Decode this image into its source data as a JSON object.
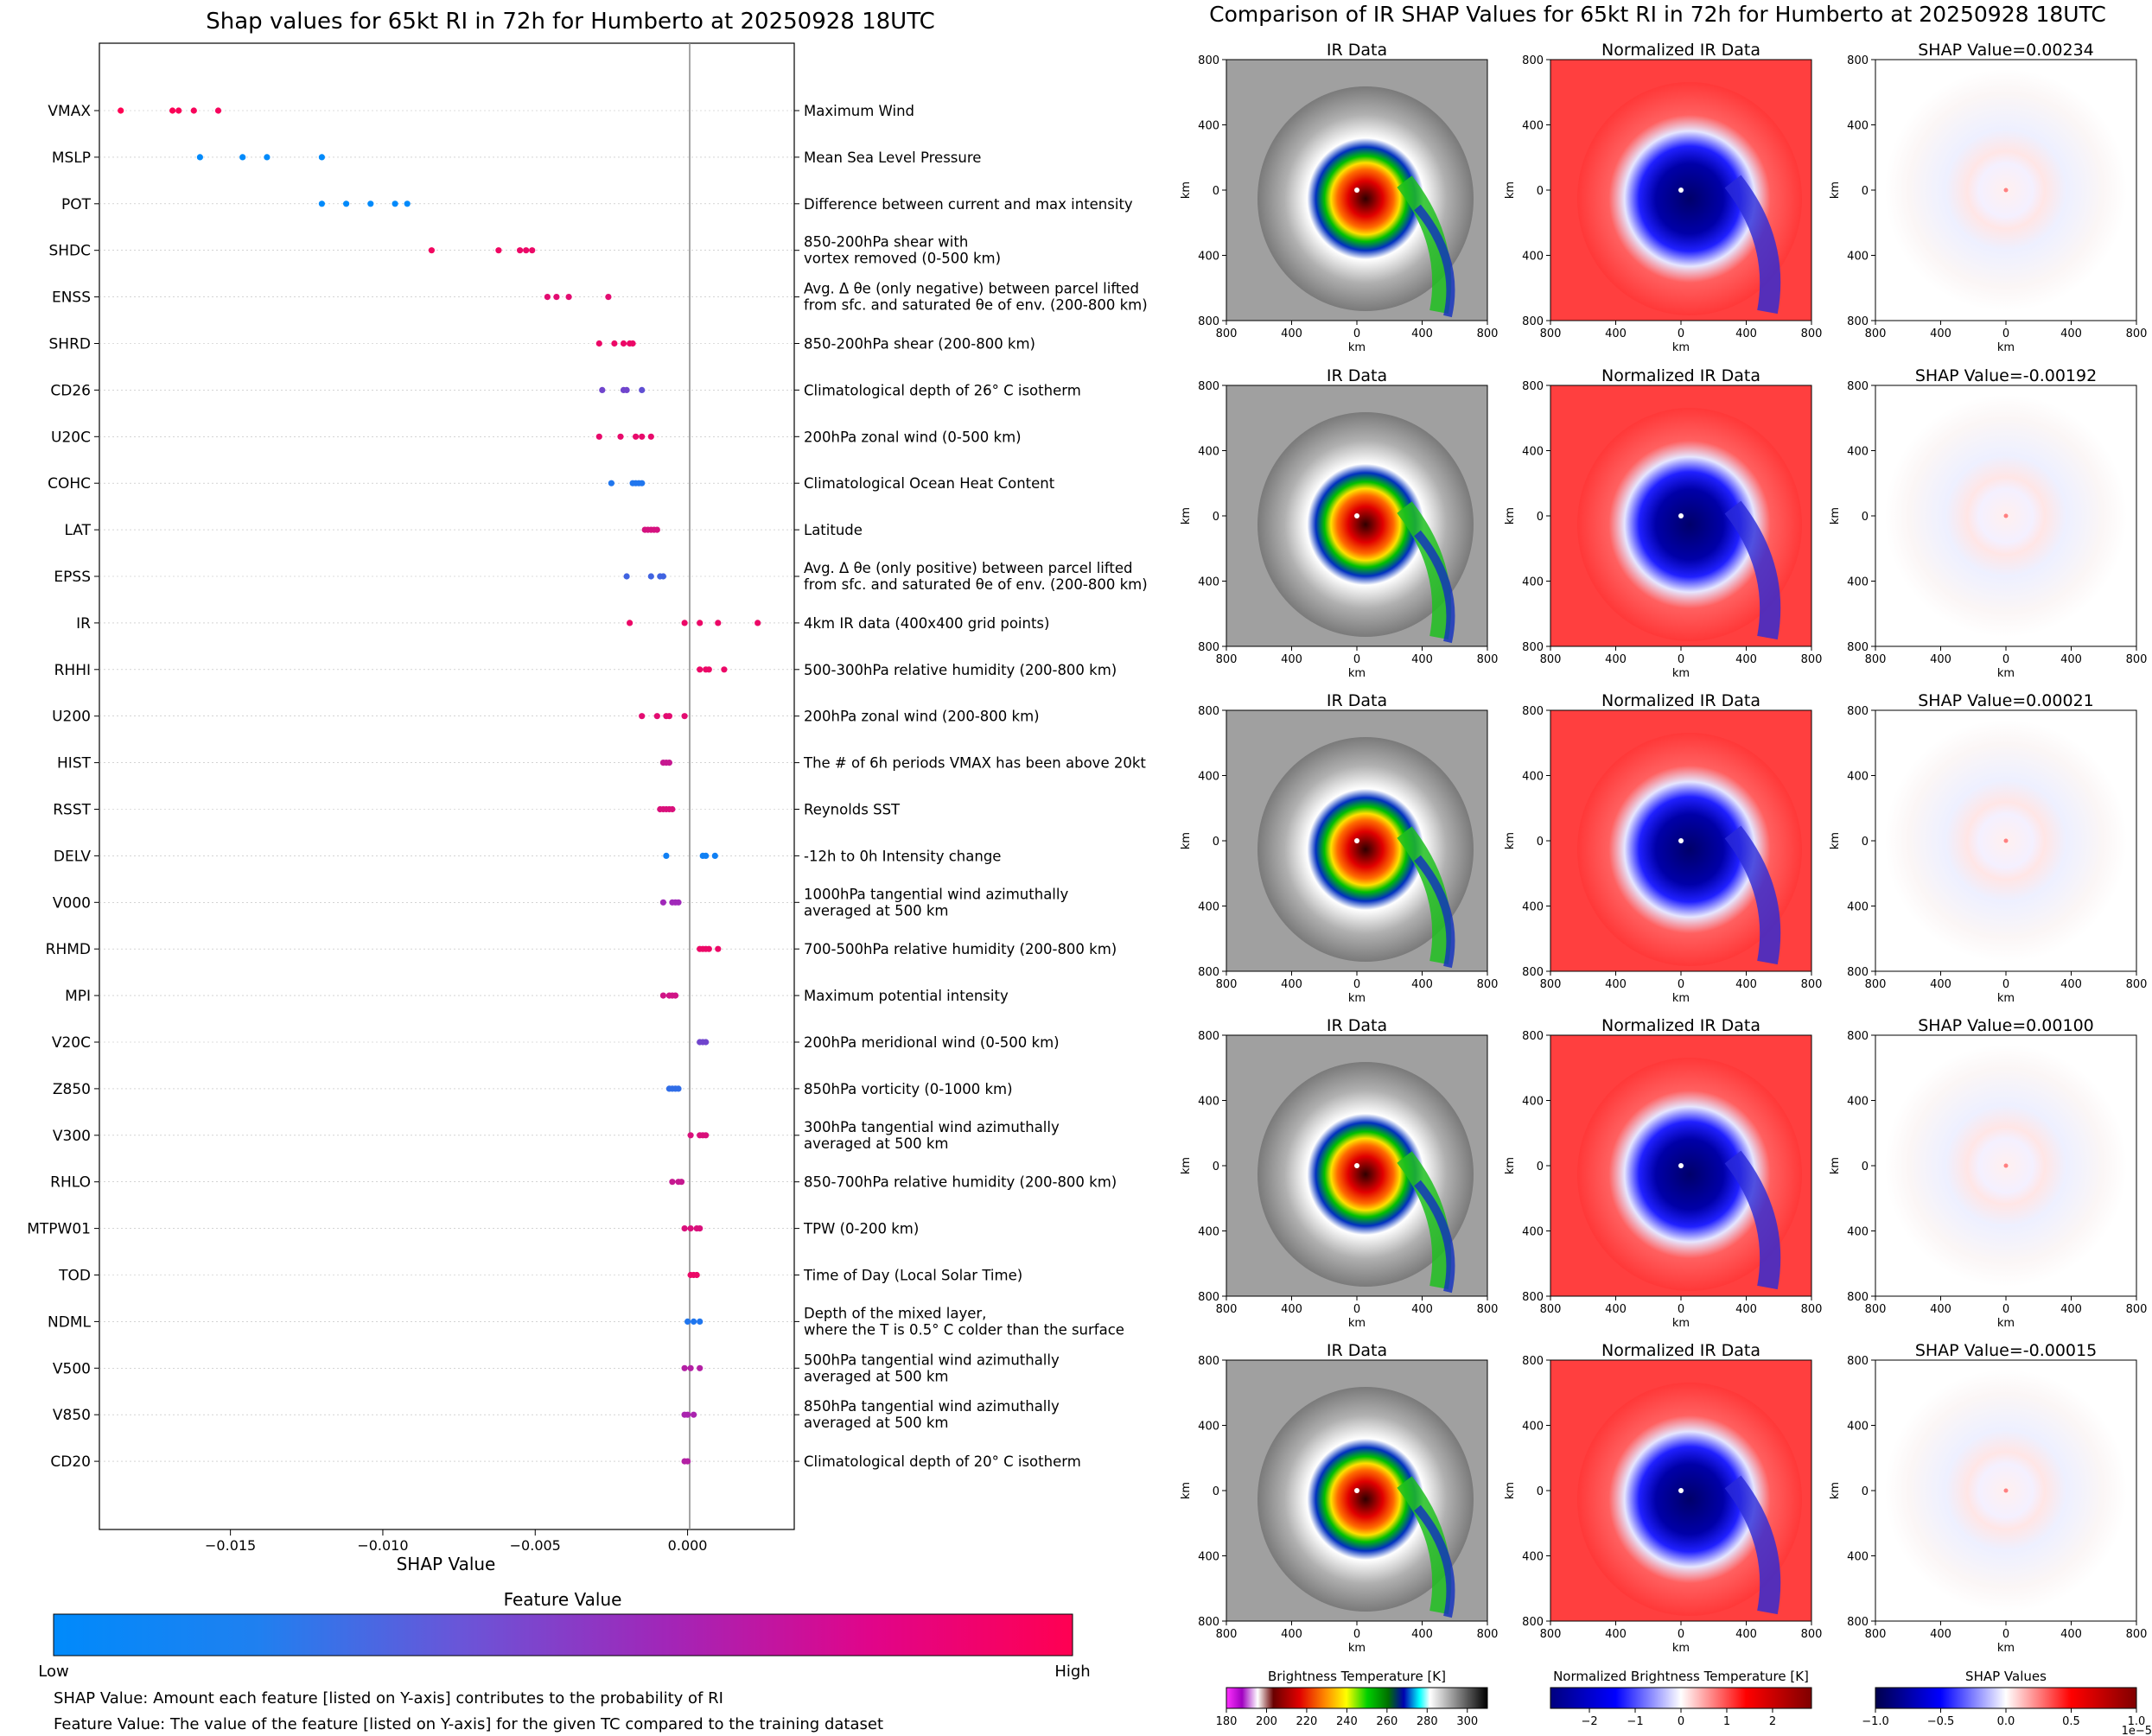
{
  "left_title": "Shap values for 65kt RI in 72h for Humberto at 20250928 18UTC",
  "right_title": "Comparison of IR SHAP Values for 65kt RI in 72h for Humberto at 20250928 18UTC",
  "xlabel": "SHAP Value",
  "colorbar": {
    "title": "Feature Value",
    "low": "Low",
    "high": "High",
    "low_color": "#008afb",
    "high_color": "#ff0052"
  },
  "notes": [
    "SHAP Value: Amount each feature [listed on Y-axis] contributes to the probability of RI",
    "Feature Value: The value of the feature [listed on Y-axis] for the given TC compared to the training dataset"
  ],
  "panel_titles": {
    "ir": "IR Data",
    "norm": "Normalized IR Data"
  },
  "axis_unit": "km",
  "km_ticks": [
    "800",
    "400",
    "0",
    "400",
    "800"
  ],
  "shap_panel_values": [
    "SHAP Value=0.00234",
    "SHAP Value=-0.00192",
    "SHAP Value=0.00021",
    "SHAP Value=0.00100",
    "SHAP Value=-0.00015"
  ],
  "bottom_colorbars": {
    "ir": {
      "title": "Brightness Temperature [K]",
      "ticks": [
        "180",
        "200",
        "220",
        "240",
        "260",
        "280",
        "300"
      ]
    },
    "norm": {
      "title": "Normalized Brightness Temperature [K]",
      "ticks": [
        "−2",
        "−1",
        "0",
        "1",
        "2"
      ]
    },
    "shap": {
      "title": "SHAP Values",
      "ticks": [
        "−1.0",
        "−0.5",
        "0.0",
        "0.5",
        "1.0"
      ],
      "offset": "1e−5"
    }
  },
  "chart_data": [
    {
      "type": "scatter",
      "title": "Shap values for 65kt RI in 72h for Humberto at 20250928 18UTC",
      "xlabel": "SHAP Value",
      "xlim": [
        -0.0193,
        0.0035
      ],
      "xticks": [
        -0.015,
        -0.01,
        -0.005,
        0.0
      ],
      "xtick_labels": [
        "−0.015",
        "−0.010",
        "−0.005",
        "0.000"
      ],
      "features": [
        {
          "name": "VMAX",
          "desc": [
            "Maximum Wind"
          ],
          "values": [
            -0.0186,
            -0.0169,
            -0.0167,
            -0.0162,
            -0.0154
          ],
          "feature_value": [
            1.0,
            0.98,
            0.97,
            0.96,
            0.95
          ]
        },
        {
          "name": "MSLP",
          "desc": [
            "Mean Sea Level Pressure"
          ],
          "values": [
            -0.016,
            -0.0146,
            -0.0138,
            -0.012
          ],
          "feature_value": [
            0.0,
            0.0,
            0.0,
            0.0
          ]
        },
        {
          "name": "POT",
          "desc": [
            "Difference between current and max intensity"
          ],
          "values": [
            -0.012,
            -0.0112,
            -0.0104,
            -0.0096,
            -0.0092
          ],
          "feature_value": [
            0.0,
            0.0,
            0.0,
            0.0,
            0.0
          ]
        },
        {
          "name": "SHDC",
          "desc": [
            "850-200hPa shear with",
            "vortex removed (0-500 km)"
          ],
          "values": [
            -0.0084,
            -0.0062,
            -0.0055,
            -0.0053,
            -0.0051
          ],
          "feature_value": [
            0.93,
            0.92,
            0.9,
            0.9,
            0.9
          ]
        },
        {
          "name": "ENSS",
          "desc": [
            "Avg. Δ θe (only negative) between parcel lifted",
            "from sfc. and saturated θe of env. (200-800 km)"
          ],
          "values": [
            -0.0046,
            -0.0043,
            -0.0039,
            -0.0026
          ],
          "feature_value": [
            0.85,
            0.85,
            0.85,
            0.85
          ]
        },
        {
          "name": "SHRD",
          "desc": [
            "850-200hPa shear (200-800 km)"
          ],
          "values": [
            -0.0029,
            -0.0024,
            -0.0021,
            -0.0019,
            -0.0018
          ],
          "feature_value": [
            0.9,
            0.9,
            0.9,
            0.9,
            0.9
          ]
        },
        {
          "name": "CD26",
          "desc": [
            "Climatological depth of 26° C isotherm"
          ],
          "values": [
            -0.0028,
            -0.0021,
            -0.002,
            -0.0015
          ],
          "feature_value": [
            0.35,
            0.35,
            0.35,
            0.3
          ]
        },
        {
          "name": "U20C",
          "desc": [
            "200hPa zonal wind (0-500 km)"
          ],
          "values": [
            -0.0029,
            -0.0022,
            -0.0017,
            -0.0015,
            -0.0012
          ],
          "feature_value": [
            0.88,
            0.88,
            0.88,
            0.88,
            0.88
          ]
        },
        {
          "name": "COHC",
          "desc": [
            "Climatological Ocean Heat Content"
          ],
          "values": [
            -0.0025,
            -0.0018,
            -0.0017,
            -0.0016,
            -0.0015
          ],
          "feature_value": [
            0.1,
            0.1,
            0.1,
            0.1,
            0.1
          ]
        },
        {
          "name": "LAT",
          "desc": [
            "Latitude"
          ],
          "values": [
            -0.0014,
            -0.0013,
            -0.0012,
            -0.0011,
            -0.001
          ],
          "feature_value": [
            0.78,
            0.78,
            0.78,
            0.78,
            0.78
          ]
        },
        {
          "name": "EPSS",
          "desc": [
            "Avg. Δ θe (only positive) between parcel lifted",
            "from sfc. and saturated θe of env. (200-800 km)"
          ],
          "values": [
            -0.002,
            -0.0012,
            -0.0009,
            -0.0008
          ],
          "feature_value": [
            0.2,
            0.2,
            0.2,
            0.2
          ]
        },
        {
          "name": "IR",
          "desc": [
            "4km IR data (400x400 grid points)"
          ],
          "values": [
            -0.0019,
            -0.0001,
            0.0004,
            0.001,
            0.0023
          ],
          "feature_value": [
            0.9,
            0.9,
            0.9,
            0.9,
            0.9
          ]
        },
        {
          "name": "RHHI",
          "desc": [
            "500-300hPa relative humidity (200-800 km)"
          ],
          "values": [
            0.0004,
            0.0006,
            0.0007,
            0.0012
          ],
          "feature_value": [
            0.9,
            0.9,
            0.9,
            0.9
          ]
        },
        {
          "name": "U200",
          "desc": [
            "200hPa zonal wind (200-800 km)"
          ],
          "values": [
            -0.0015,
            -0.001,
            -0.0007,
            -0.0006,
            -0.0001
          ],
          "feature_value": [
            0.85,
            0.85,
            0.85,
            0.85,
            0.85
          ]
        },
        {
          "name": "HIST",
          "desc": [
            "The # of 6h periods VMAX has been above 20kt"
          ],
          "values": [
            -0.0008,
            -0.0007,
            -0.0006
          ],
          "feature_value": [
            0.7,
            0.7,
            0.7
          ]
        },
        {
          "name": "RSST",
          "desc": [
            "Reynolds SST"
          ],
          "values": [
            -0.0009,
            -0.0008,
            -0.0007,
            -0.0006,
            -0.0005
          ],
          "feature_value": [
            0.8,
            0.8,
            0.8,
            0.8,
            0.8
          ]
        },
        {
          "name": "DELV",
          "desc": [
            "-12h to 0h Intensity change"
          ],
          "values": [
            -0.0007,
            0.0005,
            0.0006,
            0.0009
          ],
          "feature_value": [
            0.05,
            0.05,
            0.05,
            0.05
          ]
        },
        {
          "name": "V000",
          "desc": [
            "1000hPa tangential wind azimuthally",
            "averaged at 500 km"
          ],
          "values": [
            -0.0008,
            -0.0005,
            -0.0004,
            -0.0003
          ],
          "feature_value": [
            0.5,
            0.5,
            0.5,
            0.5
          ]
        },
        {
          "name": "RHMD",
          "desc": [
            "700-500hPa relative humidity (200-800 km)"
          ],
          "values": [
            0.0004,
            0.0005,
            0.0006,
            0.0007,
            0.001
          ],
          "feature_value": [
            0.9,
            0.9,
            0.9,
            0.9,
            0.9
          ]
        },
        {
          "name": "MPI",
          "desc": [
            "Maximum potential intensity"
          ],
          "values": [
            -0.0008,
            -0.0006,
            -0.0005,
            -0.0004
          ],
          "feature_value": [
            0.75,
            0.75,
            0.75,
            0.75
          ]
        },
        {
          "name": "V20C",
          "desc": [
            "200hPa meridional wind (0-500 km)"
          ],
          "values": [
            0.0004,
            0.0005,
            0.0006
          ],
          "feature_value": [
            0.35,
            0.35,
            0.35
          ]
        },
        {
          "name": "Z850",
          "desc": [
            "850hPa vorticity (0-1000 km)"
          ],
          "values": [
            -0.0006,
            -0.0005,
            -0.0004,
            -0.0003
          ],
          "feature_value": [
            0.15,
            0.15,
            0.15,
            0.15
          ]
        },
        {
          "name": "V300",
          "desc": [
            "300hPa tangential wind azimuthally",
            "averaged at 500 km"
          ],
          "values": [
            0.0001,
            0.0004,
            0.0005,
            0.0006
          ],
          "feature_value": [
            0.8,
            0.8,
            0.8,
            0.8
          ]
        },
        {
          "name": "RHLO",
          "desc": [
            "850-700hPa relative humidity (200-800 km)"
          ],
          "values": [
            -0.0005,
            -0.0003,
            -0.0002
          ],
          "feature_value": [
            0.7,
            0.7,
            0.7
          ]
        },
        {
          "name": "MTPW01",
          "desc": [
            "TPW (0-200 km)"
          ],
          "values": [
            -0.0001,
            0.0001,
            0.0003,
            0.0004
          ],
          "feature_value": [
            0.8,
            0.8,
            0.8,
            0.8
          ]
        },
        {
          "name": "TOD",
          "desc": [
            "Time of Day (Local Solar Time)"
          ],
          "values": [
            0.0001,
            0.0002,
            0.0003
          ],
          "feature_value": [
            0.9,
            0.9,
            0.9
          ]
        },
        {
          "name": "NDML",
          "desc": [
            "Depth of the mixed layer,",
            "where the T is 0.5° C colder than the surface"
          ],
          "values": [
            0.0,
            0.0002,
            0.0004
          ],
          "feature_value": [
            0.1,
            0.1,
            0.1
          ]
        },
        {
          "name": "V500",
          "desc": [
            "500hPa tangential wind azimuthally",
            "averaged at 500 km"
          ],
          "values": [
            -0.0001,
            0.0001,
            0.0004
          ],
          "feature_value": [
            0.6,
            0.6,
            0.6
          ]
        },
        {
          "name": "V850",
          "desc": [
            "850hPa tangential wind azimuthally",
            "averaged at 500 km"
          ],
          "values": [
            -0.0001,
            0.0,
            0.0002
          ],
          "feature_value": [
            0.55,
            0.55,
            0.55
          ]
        },
        {
          "name": "CD20",
          "desc": [
            "Climatological depth of 20° C isotherm"
          ],
          "values": [
            -0.0001,
            0.0
          ],
          "feature_value": [
            0.6,
            0.6
          ]
        }
      ]
    }
  ]
}
